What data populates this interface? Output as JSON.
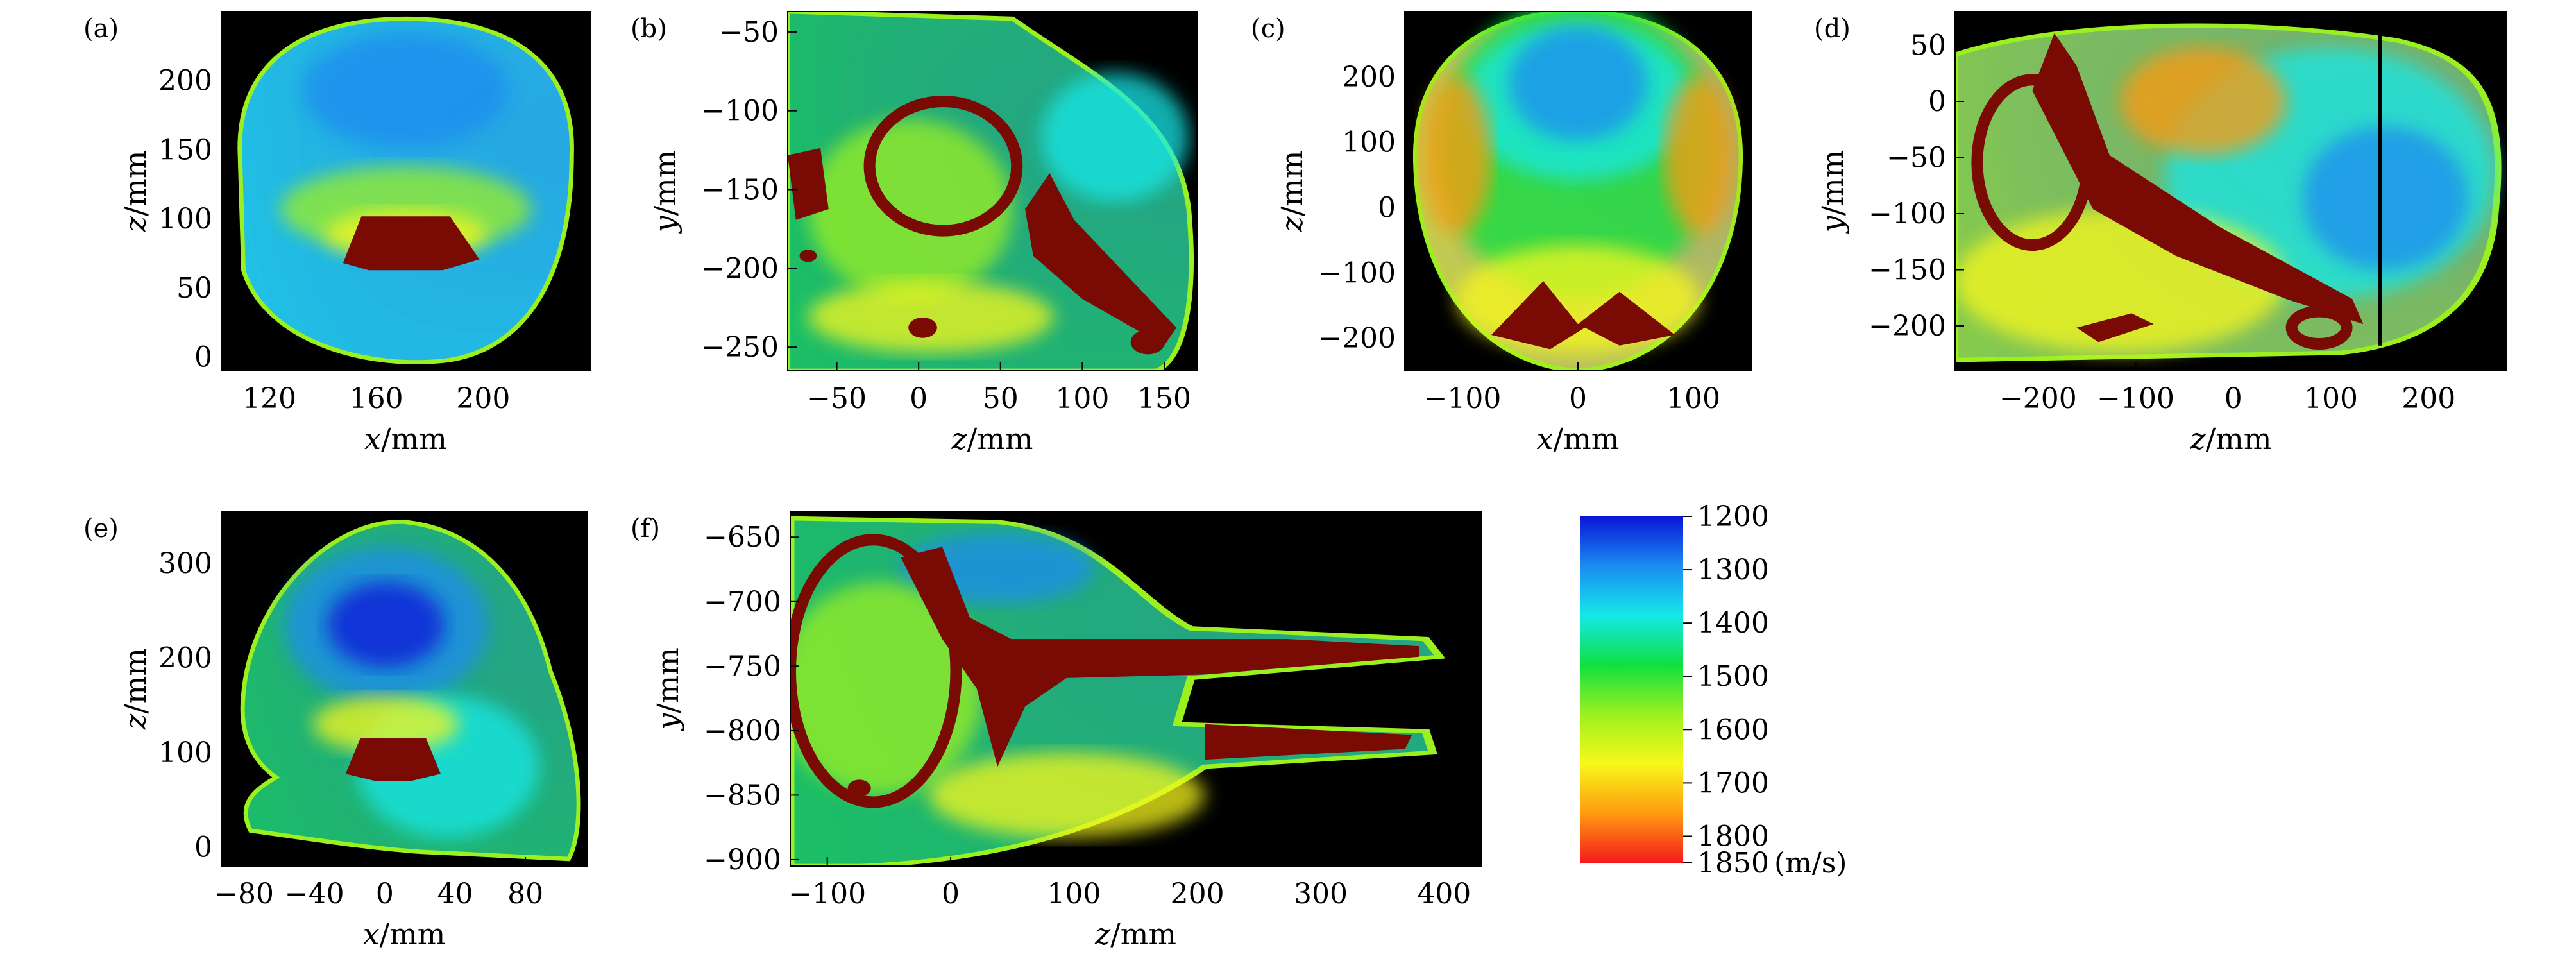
{
  "figure": {
    "panels": [
      {
        "id": "a",
        "label": "(a)",
        "type": "heatmap",
        "xlabel_var": "x",
        "xlabel_unit": "/mm",
        "ylabel_var": "z",
        "ylabel_unit": "/mm",
        "xlim": [
          102,
          240
        ],
        "ylim": [
          -10,
          250
        ],
        "xticks": [
          "120",
          "160",
          "200"
        ],
        "yticks": [
          "0",
          "50",
          "100",
          "150",
          "200"
        ]
      },
      {
        "id": "b",
        "label": "(b)",
        "type": "heatmap",
        "xlabel_var": "z",
        "xlabel_unit": "/mm",
        "ylabel_var": "y",
        "ylabel_unit": "/mm",
        "xlim": [
          -80,
          170
        ],
        "ylim": [
          -265,
          -37
        ],
        "xticks": [
          "−50",
          "0",
          "50",
          "100",
          "150"
        ],
        "yticks": [
          "−250",
          "−200",
          "−150",
          "−100",
          "−50"
        ]
      },
      {
        "id": "c",
        "label": "(c)",
        "type": "heatmap",
        "xlabel_var": "x",
        "xlabel_unit": "/mm",
        "ylabel_var": "z",
        "ylabel_unit": "/mm",
        "xlim": [
          -150,
          150
        ],
        "ylim": [
          -250,
          300
        ],
        "xticks": [
          "−100",
          "0",
          "100"
        ],
        "yticks": [
          "−200",
          "−100",
          "0",
          "100",
          "200"
        ]
      },
      {
        "id": "d",
        "label": "(d)",
        "type": "heatmap",
        "xlabel_var": "z",
        "xlabel_unit": "/mm",
        "ylabel_var": "y",
        "ylabel_unit": "/mm",
        "xlim": [
          -285,
          280
        ],
        "ylim": [
          -240,
          80
        ],
        "xticks": [
          "−200",
          "−100",
          "0",
          "100",
          "200"
        ],
        "yticks": [
          "−200",
          "−150",
          "−100",
          "−50",
          "0",
          "50"
        ]
      },
      {
        "id": "e",
        "label": "(e)",
        "type": "heatmap",
        "xlabel_var": "x",
        "xlabel_unit": "/mm",
        "ylabel_var": "z",
        "ylabel_unit": "/mm",
        "xlim": [
          -93,
          115
        ],
        "ylim": [
          -20,
          355
        ],
        "xticks": [
          "−80",
          "−40",
          "0",
          "40",
          "80"
        ],
        "yticks": [
          "0",
          "100",
          "200",
          "300"
        ]
      },
      {
        "id": "f",
        "label": "(f)",
        "type": "heatmap",
        "xlabel_var": "z",
        "xlabel_unit": "/mm",
        "ylabel_var": "y",
        "ylabel_unit": "/mm",
        "xlim": [
          -130,
          430
        ],
        "ylim": [
          -905,
          -630
        ],
        "xticks": [
          "−100",
          "0",
          "100",
          "200",
          "300",
          "400"
        ],
        "yticks": [
          "−900",
          "−850",
          "−800",
          "−750",
          "−700",
          "−650"
        ]
      }
    ]
  },
  "chart_data": {
    "type": "heatmap",
    "colorbar": {
      "ticks": [
        "1200",
        "1300",
        "1400",
        "1500",
        "1600",
        "1700",
        "1800",
        "1850"
      ],
      "tick_values": [
        1200,
        1300,
        1400,
        1500,
        1600,
        1700,
        1800,
        1850
      ],
      "unit": "(m/s)",
      "range": [
        1200,
        1850
      ],
      "colors": [
        "#0a14d8",
        "#1a8cf0",
        "#14e8e8",
        "#10e040",
        "#9cf020",
        "#f8f81a",
        "#ff9a10",
        "#f41a1a"
      ]
    },
    "bone_color": "#7a0a04",
    "background_color": "#000000"
  }
}
